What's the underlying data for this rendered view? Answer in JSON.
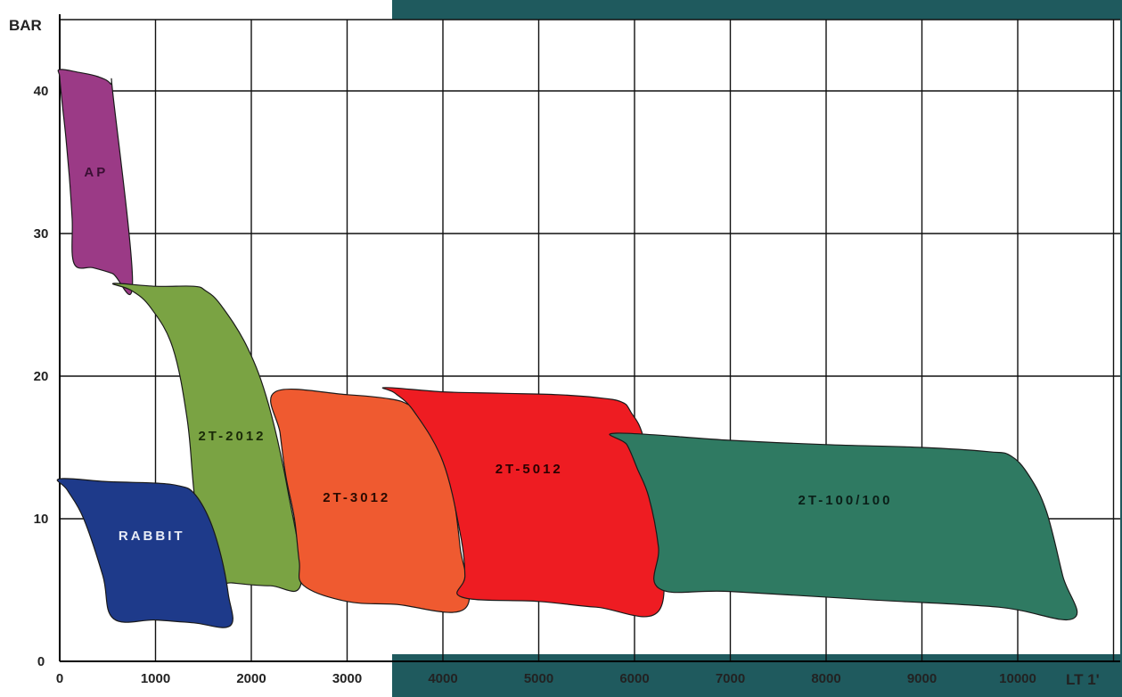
{
  "chart_data": {
    "type": "area",
    "title": "",
    "xlabel": "LT 1'",
    "ylabel": "BAR",
    "xlim": [
      0,
      11000
    ],
    "ylim": [
      0,
      45
    ],
    "grid": true,
    "x_ticks": [
      "0",
      "1000",
      "2000",
      "3000",
      "4000",
      "5000",
      "6000",
      "7000",
      "8000",
      "9000",
      "10000"
    ],
    "y_ticks": [
      "0",
      "10",
      "20",
      "30",
      "40"
    ],
    "colors": {
      "background_panel": "#1f5a5e",
      "grid": "#111111",
      "plot_bg": "#ffffff"
    },
    "series": [
      {
        "name": "AP",
        "color": "#9b3a86",
        "label_color": "#3a0f33",
        "label_at": [
          380,
          34
        ],
        "points": [
          [
            0,
            41.5
          ],
          [
            200,
            41.3
          ],
          [
            400,
            41
          ],
          [
            530,
            40.5
          ],
          [
            560,
            39.5
          ],
          [
            760,
            26.6
          ],
          [
            550,
            27.2
          ],
          [
            350,
            27.6
          ],
          [
            150,
            27.9
          ],
          [
            130,
            31
          ],
          [
            100,
            34
          ],
          [
            60,
            37
          ],
          [
            20,
            39.5
          ],
          [
            0,
            41
          ]
        ]
      },
      {
        "name": "2T-2012",
        "color": "#7aa343",
        "label_color": "#1a2a08",
        "label_at": [
          1800,
          15.5
        ],
        "points": [
          [
            560,
            26.5
          ],
          [
            1000,
            26.3
          ],
          [
            1400,
            26.3
          ],
          [
            1520,
            26.0
          ],
          [
            1680,
            25.0
          ],
          [
            1960,
            22
          ],
          [
            2180,
            18
          ],
          [
            2380,
            12
          ],
          [
            2520,
            5.5
          ],
          [
            2200,
            5.3
          ],
          [
            1800,
            5.5
          ],
          [
            1500,
            5.8
          ],
          [
            1400,
            12
          ],
          [
            1330,
            17
          ],
          [
            1180,
            22
          ],
          [
            950,
            24.8
          ],
          [
            750,
            26.0
          ]
        ]
      },
      {
        "name": "2T-3012",
        "color": "#ef5a30",
        "label_color": "#2a0a00",
        "label_at": [
          3100,
          11.2
        ],
        "points": [
          [
            2250,
            18.9
          ],
          [
            3000,
            18.7
          ],
          [
            3450,
            18.4
          ],
          [
            3640,
            18.0
          ],
          [
            3780,
            17.3
          ],
          [
            4000,
            14.5
          ],
          [
            4100,
            12
          ],
          [
            4180,
            8
          ],
          [
            4230,
            3.7
          ],
          [
            3500,
            4.0
          ],
          [
            3000,
            4.2
          ],
          [
            2550,
            5.3
          ],
          [
            2500,
            7
          ],
          [
            2450,
            10
          ],
          [
            2360,
            13
          ],
          [
            2300,
            16
          ]
        ]
      },
      {
        "name": "2T-5012",
        "color": "#ee1c22",
        "label_color": "#2a0000",
        "label_at": [
          4900,
          13.2
        ],
        "points": [
          [
            3400,
            19.2
          ],
          [
            4000,
            18.9
          ],
          [
            4600,
            18.8
          ],
          [
            5200,
            18.7
          ],
          [
            5600,
            18.5
          ],
          [
            5860,
            18.2
          ],
          [
            5960,
            17.5
          ],
          [
            6100,
            15.5
          ],
          [
            6230,
            10
          ],
          [
            6260,
            3.6
          ],
          [
            5600,
            3.8
          ],
          [
            5000,
            4.2
          ],
          [
            4200,
            4.5
          ],
          [
            4230,
            6
          ],
          [
            4180,
            9
          ],
          [
            4000,
            14
          ],
          [
            3700,
            17.5
          ],
          [
            3500,
            18.8
          ]
        ]
      },
      {
        "name": "2T-100/100",
        "color": "#2f7a62",
        "label_color": "#0a1f18",
        "label_at": [
          8200,
          11.0
        ],
        "points": [
          [
            5810,
            16.0
          ],
          [
            7000,
            15.5
          ],
          [
            8000,
            15.2
          ],
          [
            9000,
            15.0
          ],
          [
            9700,
            14.7
          ],
          [
            9930,
            14.4
          ],
          [
            10120,
            13.0
          ],
          [
            10300,
            10.5
          ],
          [
            10470,
            6
          ],
          [
            10580,
            3.0
          ],
          [
            9800,
            3.8
          ],
          [
            8500,
            4.3
          ],
          [
            7000,
            4.9
          ],
          [
            6260,
            5.1
          ],
          [
            6250,
            8
          ],
          [
            6150,
            11.5
          ],
          [
            6030,
            13.5
          ],
          [
            5920,
            15.2
          ]
        ]
      },
      {
        "name": "RABBIT",
        "color": "#1e3a8a",
        "label_color": "#e8ecf6",
        "label_at": [
          960,
          8.5
        ],
        "points": [
          [
            0,
            12.8
          ],
          [
            500,
            12.6
          ],
          [
            1000,
            12.5
          ],
          [
            1250,
            12.3
          ],
          [
            1400,
            11.8
          ],
          [
            1560,
            10.0
          ],
          [
            1680,
            7.5
          ],
          [
            1760,
            4.7
          ],
          [
            1780,
            2.5
          ],
          [
            1400,
            2.7
          ],
          [
            1000,
            2.9
          ],
          [
            560,
            3.0
          ],
          [
            450,
            6
          ],
          [
            250,
            10
          ],
          [
            80,
            12
          ]
        ]
      }
    ]
  }
}
